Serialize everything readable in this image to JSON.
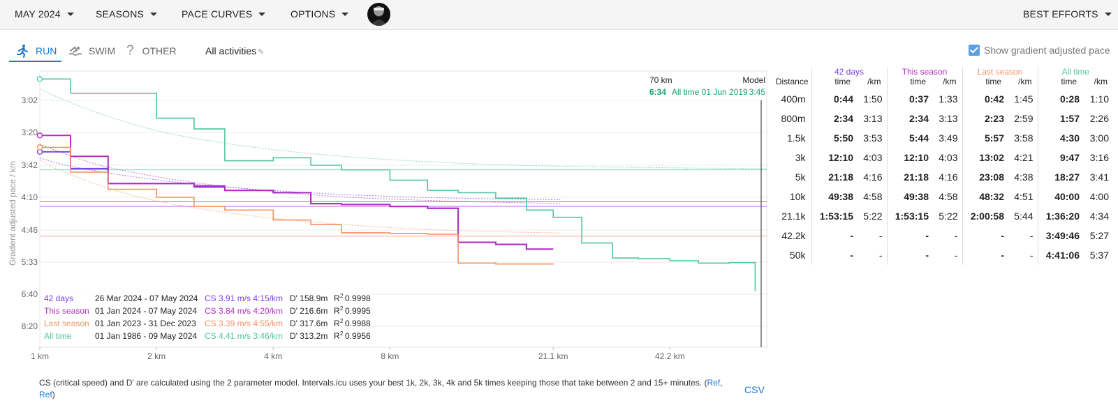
{
  "topbar": {
    "menus": [
      {
        "label": "MAY 2024"
      },
      {
        "label": "SEASONS"
      },
      {
        "label": "PACE CURVES"
      },
      {
        "label": "OPTIONS"
      }
    ],
    "right_menu": "BEST EFFORTS"
  },
  "tabs": [
    {
      "label": "RUN",
      "icon": "run-icon"
    },
    {
      "label": "SWIM",
      "icon": "swim-icon"
    },
    {
      "label": "OTHER",
      "icon": "question-icon"
    }
  ],
  "filter_label": "All activities",
  "gap_checkbox": {
    "label": "Show gradient adjusted pace",
    "checked": true
  },
  "colors": {
    "d42": "#7b3fe4",
    "season": "#b22fbf",
    "last_season": "#f79264",
    "all_time": "#4fc6a0",
    "accent": "#1976d2"
  },
  "chart_data": {
    "type": "line",
    "ylabel": "Gradient adjusted pace / km",
    "x_ticks": [
      "1 km",
      "2 km",
      "4 km",
      "8 km",
      "21.1 km",
      "42.2 km"
    ],
    "y_ticks": [
      "3:02",
      "3:20",
      "3:42",
      "4:10",
      "4:46",
      "5:33",
      "6:40",
      "8:20"
    ],
    "marker": {
      "distance": "70 km",
      "model_label": "Model",
      "value_text": "6:34",
      "value_label": "All time 01 Jun 2019",
      "model_value": "3:45"
    },
    "x_km": [
      1,
      1.2,
      1.5,
      2,
      2.5,
      3,
      4,
      5,
      6,
      8,
      10,
      12,
      15,
      18,
      21.1,
      25,
      30,
      35,
      42.2,
      50,
      60,
      70
    ],
    "series": [
      {
        "name": "42 days",
        "pace": [
          "3:33",
          "3:45",
          "3:58",
          "3:58",
          "4:01",
          "4:04",
          "4:06",
          "4:17",
          "4:18",
          "4:20",
          "4:22",
          "5:04",
          "5:07",
          "5:14",
          "5:14",
          null,
          null,
          null,
          null,
          null,
          null,
          null
        ]
      },
      {
        "name": "This season",
        "pace": [
          "3:22",
          "3:36",
          "3:58",
          "3:58",
          "4:00",
          "4:04",
          "4:06",
          "4:17",
          "4:18",
          "4:20",
          "4:22",
          "5:04",
          "5:07",
          "5:14",
          "5:14",
          null,
          null,
          null,
          null,
          null,
          null,
          null
        ]
      },
      {
        "name": "Last season",
        "pace": [
          "3:30",
          "3:48",
          "4:03",
          "4:10",
          "4:20",
          "4:24",
          "4:35",
          "4:40",
          "4:50",
          "4:51",
          "4:52",
          "5:35",
          "5:37",
          "5:37",
          "5:38",
          null,
          null,
          null,
          null,
          null,
          null,
          null
        ]
      },
      {
        "name": "All time",
        "pace": [
          "2:50",
          "2:58",
          "2:58",
          "3:12",
          "3:18",
          "3:39",
          "3:37",
          "3:42",
          "3:46",
          "3:55",
          "4:04",
          "4:06",
          "4:11",
          "4:24",
          "4:32",
          "5:05",
          "5:27",
          "5:28",
          "5:31",
          "5:35",
          "5:34",
          "6:34"
        ]
      }
    ],
    "cs_lines": [
      {
        "name": "42 days",
        "pace": "4:15"
      },
      {
        "name": "This season",
        "pace": "4:20"
      },
      {
        "name": "Last season",
        "pace": "4:55"
      },
      {
        "name": "All time",
        "pace": "3:46"
      }
    ],
    "legend": [
      {
        "name": "42 days",
        "range": "26 Mar 2024 - 07 May 2024",
        "cs": "CS 3.91 m/s 4:15/km",
        "dprime": "D' 158.9m",
        "r2": "0.9998"
      },
      {
        "name": "This season",
        "range": "01 Jan 2024 - 07 May 2024",
        "cs": "CS 3.84 m/s 4:20/km",
        "dprime": "D' 216.6m",
        "r2": "0.9995"
      },
      {
        "name": "Last season",
        "range": "01 Jan 2023 - 31 Dec 2023",
        "cs": "CS 3.39 m/s 4:55/km",
        "dprime": "D' 317.6m",
        "r2": "0.9988"
      },
      {
        "name": "All time",
        "range": "01 Jan 1986 - 09 May 2024",
        "cs": "CS 4.41 m/s 3:46/km",
        "dprime": "D' 313.2m",
        "r2": "0.9956"
      }
    ],
    "r2_label": "R"
  },
  "table": {
    "distance_header": "Distance",
    "groups": [
      {
        "label": "42 days",
        "color_key": "d42"
      },
      {
        "label": "This season",
        "color_key": "season"
      },
      {
        "label": "Last season",
        "color_key": "last_season"
      },
      {
        "label": "All time",
        "color_key": "all_time"
      }
    ],
    "sub_time": "time",
    "sub_km": "/km",
    "rows": [
      {
        "d": "400m",
        "v": [
          "0:44",
          "1:50",
          "0:37",
          "1:33",
          "0:42",
          "1:45",
          "0:28",
          "1:10"
        ]
      },
      {
        "d": "800m",
        "v": [
          "2:34",
          "3:13",
          "2:34",
          "3:13",
          "2:23",
          "2:59",
          "1:57",
          "2:26"
        ]
      },
      {
        "d": "1.5k",
        "v": [
          "5:50",
          "3:53",
          "5:44",
          "3:49",
          "5:57",
          "3:58",
          "4:30",
          "3:00"
        ]
      },
      {
        "d": "3k",
        "v": [
          "12:10",
          "4:03",
          "12:10",
          "4:03",
          "13:02",
          "4:21",
          "9:47",
          "3:16"
        ]
      },
      {
        "d": "5k",
        "v": [
          "21:18",
          "4:16",
          "21:18",
          "4:16",
          "23:08",
          "4:38",
          "18:27",
          "3:41"
        ]
      },
      {
        "d": "10k",
        "v": [
          "49:38",
          "4:58",
          "49:38",
          "4:58",
          "48:32",
          "4:51",
          "40:00",
          "4:00"
        ]
      },
      {
        "d": "21.1k",
        "v": [
          "1:53:15",
          "5:22",
          "1:53:15",
          "5:22",
          "2:00:58",
          "5:44",
          "1:36:20",
          "4:34"
        ]
      },
      {
        "d": "42.2k",
        "v": [
          "-",
          "-",
          "-",
          "-",
          "-",
          "-",
          "3:49:46",
          "5:27"
        ]
      },
      {
        "d": "50k",
        "v": [
          "-",
          "-",
          "-",
          "-",
          "-",
          "-",
          "4:41:06",
          "5:37"
        ]
      }
    ]
  },
  "footer": {
    "text": "CS (critical speed) and D' are calculated using the 2 parameter model. Intervals.icu uses your best 1k, 2k, 3k, 4k and 5k times keeping those that take between 2 and 15+ minutes. (",
    "ref1": "Ref",
    "sep": ",",
    "ref2": "Ref",
    "end": ")",
    "csv": "CSV"
  }
}
